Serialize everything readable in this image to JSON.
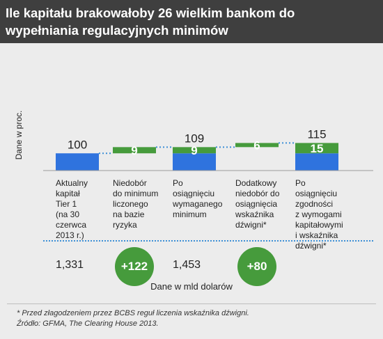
{
  "header": {
    "title": "Ile kapitału brakowałoby 26 wielkim bankom do wypełniania regulacyjnych minimów"
  },
  "colors": {
    "header_bg": "#3f3f3f",
    "panel_bg": "#ececec",
    "base_bar": "#2f73de",
    "increment_bar": "#469b3c",
    "dotted_line": "#3d8fd6"
  },
  "chart_data": {
    "type": "bar",
    "subtype": "waterfall",
    "ylabel": "Dane w proc.",
    "grid": false,
    "legend": "none",
    "ylim": [
      0,
      130
    ],
    "categories": [
      "Aktualny\nkapitał\nTier 1\n(na 30\nczerwca\n2013 r.)",
      "Niedobór\ndo minimum\nliczonego\nna bazie\nryzyka",
      "Po\nosiągnięciu\nwymaganego\nminimum",
      "Dodatkowy\nniedobór do\nosiągnięcia\nwskaźnika\ndźwigni*",
      "Po\nosiągnięciu\nzgodności\nz wymogami\nkapitałowymi\ni wskaźnika\ndźwigni*"
    ],
    "segments": [
      [
        {
          "from": 0,
          "to": 100,
          "kind": "base"
        }
      ],
      [
        {
          "from": 100,
          "to": 109,
          "kind": "increment",
          "label": "9"
        }
      ],
      [
        {
          "from": 0,
          "to": 100,
          "kind": "base"
        },
        {
          "from": 100,
          "to": 109,
          "kind": "increment",
          "label": "9"
        }
      ],
      [
        {
          "from": 109,
          "to": 115,
          "kind": "increment",
          "label": "6"
        }
      ],
      [
        {
          "from": 0,
          "to": 100,
          "kind": "base"
        },
        {
          "from": 100,
          "to": 115,
          "kind": "increment",
          "label": "15"
        }
      ]
    ],
    "totals": [
      "100",
      null,
      "109",
      null,
      "115"
    ],
    "bottom_values": [
      {
        "text": "1,331",
        "style": "plain"
      },
      {
        "text": "+122",
        "style": "circle"
      },
      {
        "text": "1,453",
        "style": "plain"
      },
      {
        "text": "+80",
        "style": "circle"
      },
      null
    ],
    "bottom_label": "Dane w mld dolarów"
  },
  "footnotes": {
    "note": "* Przed złagodzeniem przez BCBS reguł liczenia wskaźnika dźwigni.",
    "source": "Źródło: GFMA, The Clearing House  2013."
  }
}
